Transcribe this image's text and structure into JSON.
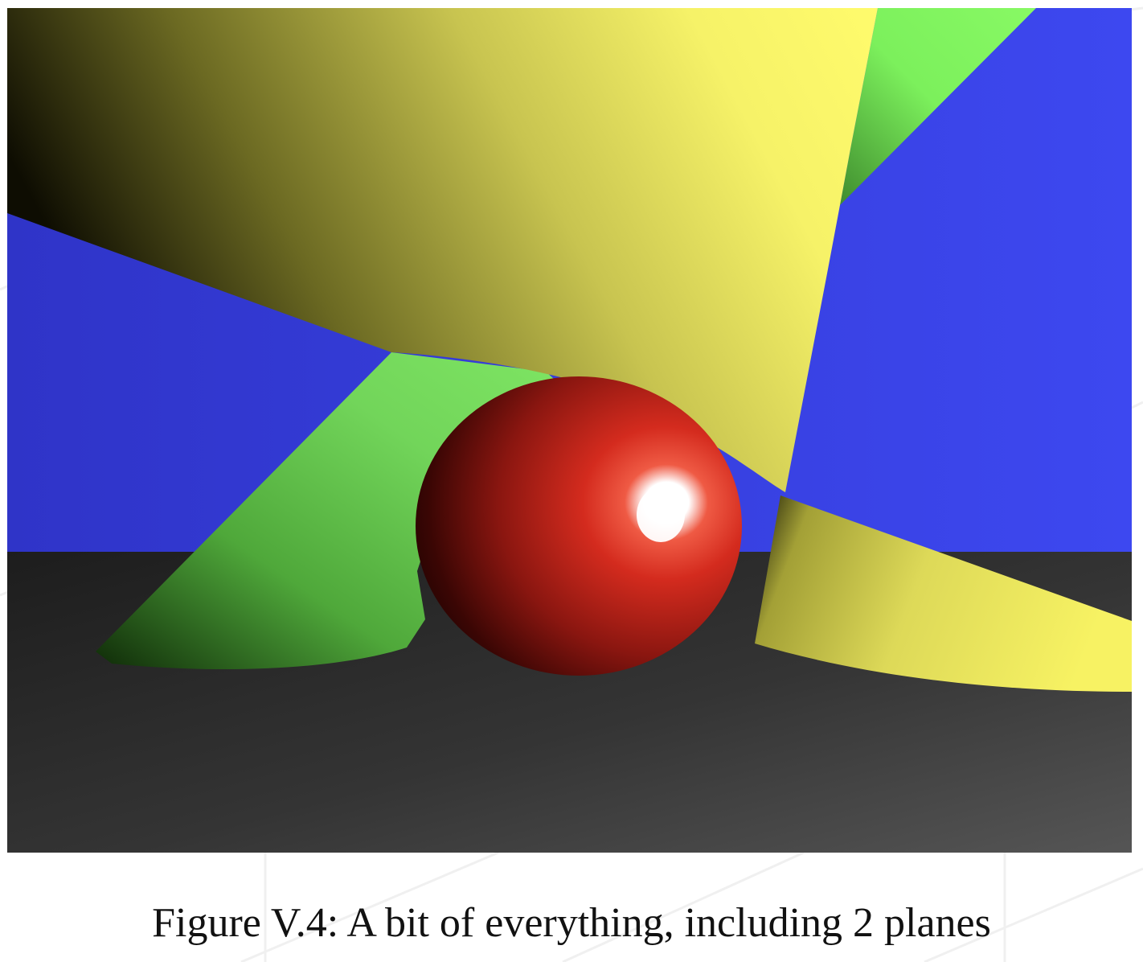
{
  "figure": {
    "caption": "Figure V.4: A bit of everything, including 2 planes"
  },
  "scene": {
    "colors": {
      "sky": "#3a44e6",
      "floor": "#353535",
      "yellow_cone": "#f2ee5a",
      "green_cone": "#74e05a",
      "red_sphere": "#d4261c",
      "highlight": "#ffffff"
    }
  }
}
